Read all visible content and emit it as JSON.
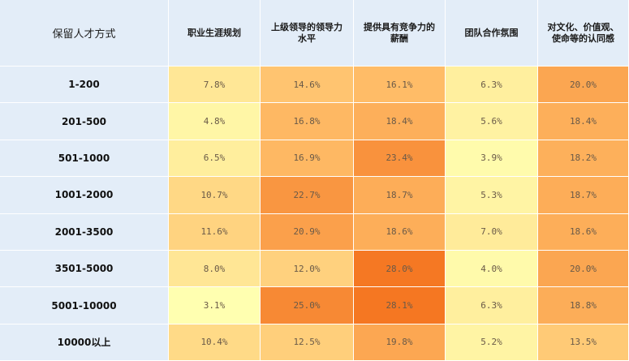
{
  "chart_data": {
    "type": "heatmap",
    "corner_label": "保留人才方式",
    "columns": [
      "职业生涯规划",
      "上级领导的领导力\n水平",
      "提供具有竞争力的\n薪酬",
      "团队合作氛围",
      "对文化、价值观、\n使命等的认同感"
    ],
    "rows": [
      "1-200",
      "201-500",
      "501-1000",
      "1001-2000",
      "2001-3500",
      "3501-5000",
      "5001-10000",
      "10000以上"
    ],
    "values": [
      [
        7.8,
        14.6,
        16.1,
        6.3,
        20.0
      ],
      [
        4.8,
        16.8,
        18.4,
        5.6,
        18.4
      ],
      [
        6.5,
        16.9,
        23.4,
        3.9,
        18.2
      ],
      [
        10.7,
        22.7,
        18.7,
        5.3,
        18.7
      ],
      [
        11.6,
        20.9,
        18.6,
        7.0,
        18.6
      ],
      [
        8.0,
        12.0,
        28.0,
        4.0,
        20.0
      ],
      [
        3.1,
        25.0,
        28.1,
        6.3,
        18.8
      ],
      [
        10.4,
        12.5,
        19.8,
        5.2,
        13.5
      ]
    ],
    "unit": "%",
    "color_scale": {
      "low": "#ffffb0",
      "mid": "#ffbf6a",
      "high": "#f57722"
    }
  }
}
